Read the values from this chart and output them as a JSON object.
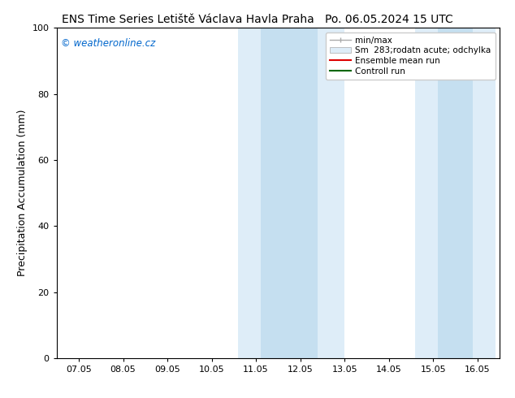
{
  "title_left": "ENS Time Series Letiště Václava Havla Praha",
  "title_right": "Po. 06.05.2024 15 UTC",
  "ylabel": "Precipitation Accumulation (mm)",
  "watermark": "© weatheronline.cz",
  "watermark_color": "#0066cc",
  "ylim": [
    0,
    100
  ],
  "yticks": [
    0,
    20,
    40,
    60,
    80,
    100
  ],
  "xtick_labels": [
    "07.05",
    "08.05",
    "09.05",
    "10.05",
    "11.05",
    "12.05",
    "13.05",
    "14.05",
    "15.05",
    "16.05"
  ],
  "x_values": [
    0,
    1,
    2,
    3,
    4,
    5,
    6,
    7,
    8,
    9
  ],
  "xlim": [
    -0.5,
    9.5
  ],
  "shaded_outer_1": {
    "x_start": 3.6,
    "x_end": 6.0,
    "color": "#deedf8"
  },
  "shaded_outer_2": {
    "x_start": 7.6,
    "x_end": 9.4,
    "color": "#deedf8"
  },
  "shaded_inner_1": {
    "x_start": 4.1,
    "x_end": 5.4,
    "color": "#c5dff0"
  },
  "shaded_inner_2": {
    "x_start": 8.1,
    "x_end": 8.9,
    "color": "#c5dff0"
  },
  "legend_entries": [
    {
      "label": "min/max",
      "type": "errorbar",
      "color": "#aaaaaa"
    },
    {
      "label": "Sm  283;rodatn acute; odchylka",
      "type": "patch",
      "color": "#deedf8"
    },
    {
      "label": "Ensemble mean run",
      "type": "line",
      "color": "#dd0000"
    },
    {
      "label": "Controll run",
      "type": "line",
      "color": "#006600"
    }
  ],
  "bg_color": "#ffffff",
  "title_fontsize": 10,
  "axis_label_fontsize": 9,
  "tick_fontsize": 8,
  "legend_fontsize": 7.5
}
